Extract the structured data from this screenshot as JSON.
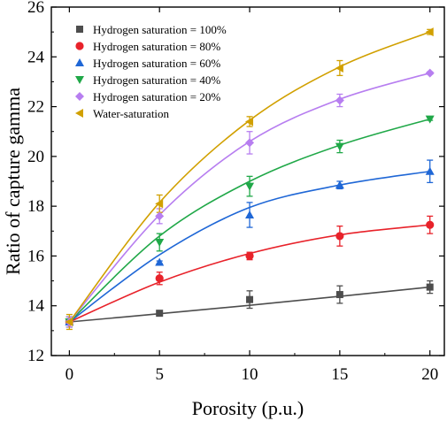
{
  "chart_data": {
    "type": "scatter",
    "title": "",
    "xlabel": "Porosity (p.u.)",
    "ylabel": "Ratio of capture gamma",
    "xlim": [
      -1,
      20.8
    ],
    "ylim": [
      12,
      26
    ],
    "xticks": [
      0,
      5,
      10,
      15,
      20
    ],
    "yticks": [
      12,
      14,
      16,
      18,
      20,
      22,
      24,
      26
    ],
    "grid": false,
    "legend_position": "top-left",
    "x": [
      0,
      5,
      10,
      15,
      20
    ],
    "series": [
      {
        "name": "Hydrogen saturation = 100%",
        "marker": "square",
        "color": "#4d4d4d",
        "values": [
          13.35,
          13.7,
          14.25,
          14.45,
          14.75
        ],
        "errors": [
          0.2,
          0.08,
          0.35,
          0.35,
          0.25
        ],
        "fit": [
          13.35,
          13.68,
          14.02,
          14.38,
          14.75
        ]
      },
      {
        "name": "Hydrogen saturation = 80%",
        "marker": "circle",
        "color": "#e8222a",
        "values": [
          13.35,
          15.1,
          16.0,
          16.8,
          17.25
        ],
        "errors": [
          0.2,
          0.25,
          0.15,
          0.4,
          0.35
        ],
        "fit": [
          13.35,
          14.95,
          16.1,
          16.85,
          17.25
        ]
      },
      {
        "name": "Hydrogen saturation = 60%",
        "marker": "triangle-up",
        "color": "#1f67d6",
        "values": [
          13.35,
          15.75,
          17.65,
          18.85,
          19.4
        ],
        "errors": [
          0.2,
          0.05,
          0.5,
          0.15,
          0.45
        ],
        "fit": [
          13.35,
          16.05,
          17.95,
          18.85,
          19.4
        ]
      },
      {
        "name": "Hydrogen saturation = 40%",
        "marker": "triangle-down",
        "color": "#20a848",
        "values": [
          13.35,
          16.55,
          18.8,
          20.4,
          21.5
        ],
        "errors": [
          0.2,
          0.35,
          0.4,
          0.25,
          0.05
        ],
        "fit": [
          13.35,
          16.8,
          19.0,
          20.45,
          21.5
        ]
      },
      {
        "name": "Hydrogen saturation = 20%",
        "marker": "diamond",
        "color": "#b77ef0",
        "values": [
          13.35,
          17.6,
          20.55,
          22.25,
          23.35
        ],
        "errors": [
          0.2,
          0.3,
          0.45,
          0.25,
          0.05
        ],
        "fit": [
          13.35,
          17.65,
          20.6,
          22.3,
          23.35
        ]
      },
      {
        "name": "Water-saturation",
        "marker": "triangle-left",
        "color": "#d1a000",
        "values": [
          13.35,
          18.1,
          21.4,
          23.55,
          25.0
        ],
        "errors": [
          0.3,
          0.35,
          0.2,
          0.3,
          0.1
        ],
        "fit": [
          13.35,
          18.15,
          21.45,
          23.6,
          25.0
        ]
      }
    ]
  }
}
